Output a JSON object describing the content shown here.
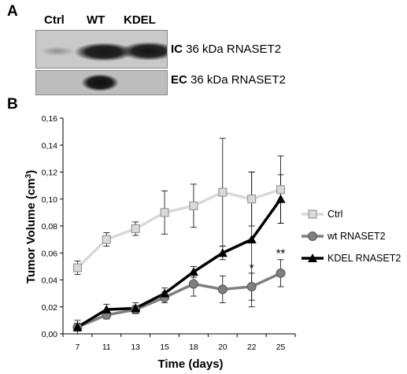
{
  "panel_a": {
    "letter": "A",
    "lanes": [
      "Ctrl",
      "WT",
      "KDEL"
    ],
    "blots": [
      {
        "tag": "IC",
        "text": "36 kDa RNASET2"
      },
      {
        "tag": "EC",
        "text": "36 kDa RNASET2"
      }
    ]
  },
  "panel_b": {
    "letter": "B"
  },
  "chart_data": {
    "type": "line",
    "title": "",
    "xlabel": "Time (days)",
    "ylabel": "Tumor Volume (cm³)",
    "ylabel_base": "Tumor Volume (cm",
    "ylabel_sup": "3",
    "ylabel_close": ")",
    "x": [
      7,
      11,
      13,
      15,
      18,
      20,
      22,
      25
    ],
    "ylim": [
      0,
      0.16
    ],
    "yticks": [
      "0,00",
      "0,02",
      "0,04",
      "0,06",
      "0,08",
      "0,10",
      "0,12",
      "0,14",
      "0,16"
    ],
    "grid": false,
    "legend_position": "right",
    "series": [
      {
        "name": "Ctrl",
        "marker": "square",
        "color": "#d9d9d9",
        "values": [
          0.049,
          0.07,
          0.078,
          0.09,
          0.095,
          0.105,
          0.1,
          0.107
        ],
        "errors": [
          0.005,
          0.005,
          0.005,
          0.016,
          0.016,
          0.04,
          0.02,
          0.025
        ]
      },
      {
        "name": "wt RNASET2",
        "marker": "circle",
        "color": "#7f7f7f",
        "values": [
          0.005,
          0.014,
          0.018,
          0.027,
          0.037,
          0.033,
          0.035,
          0.045
        ],
        "errors": [
          0.003,
          0.003,
          0.003,
          0.004,
          0.009,
          0.01,
          0.01,
          0.01
        ]
      },
      {
        "name": "KDEL RNASET2",
        "marker": "triangle",
        "color": "#000000",
        "values": [
          0.005,
          0.018,
          0.019,
          0.03,
          0.046,
          0.06,
          0.07,
          0.1
        ],
        "errors": [
          0.005,
          0.004,
          0.004,
          0.004,
          0.004,
          0.005,
          0.05,
          0.018
        ]
      }
    ],
    "annotations": [
      {
        "text": "*",
        "x": 22,
        "y": 0.046
      },
      {
        "text": "**",
        "x": 25,
        "y": 0.057
      }
    ]
  }
}
